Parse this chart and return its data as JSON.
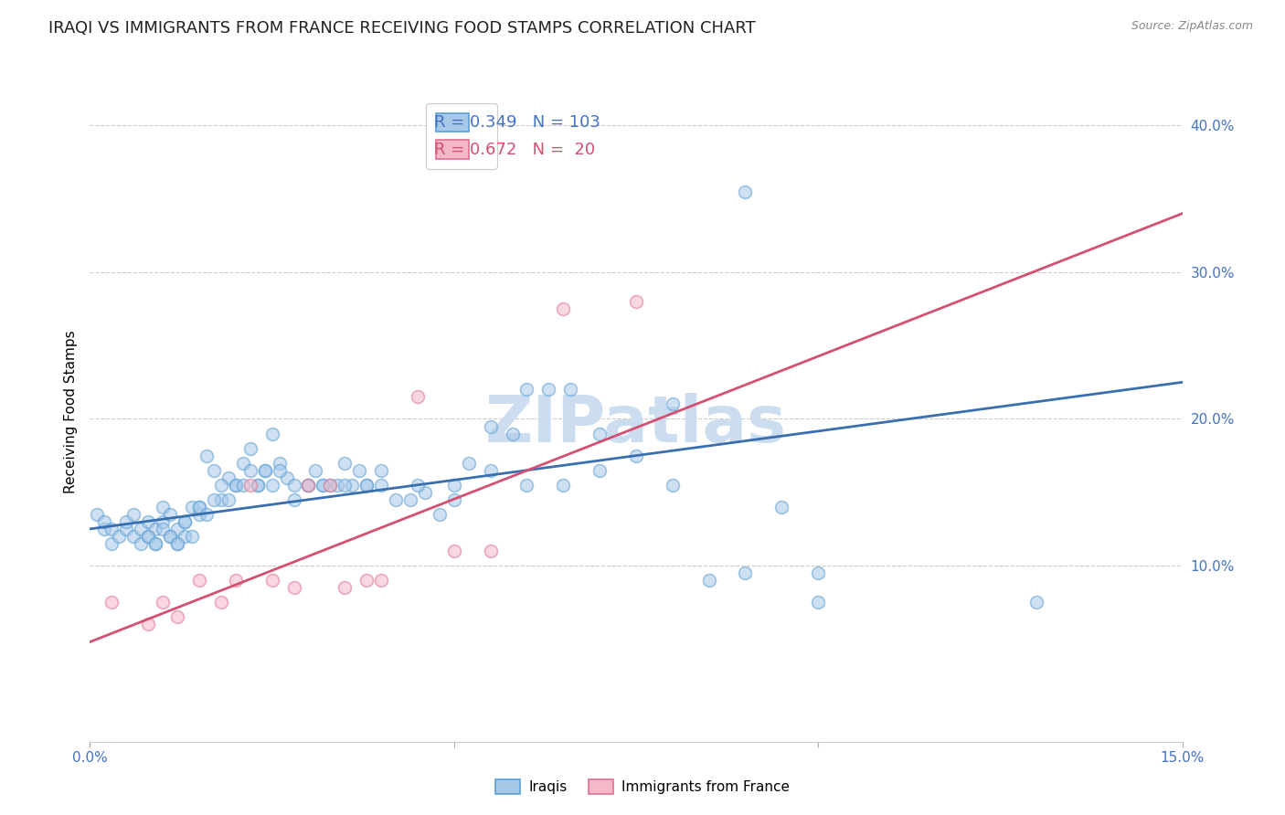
{
  "title": "IRAQI VS IMMIGRANTS FROM FRANCE RECEIVING FOOD STAMPS CORRELATION CHART",
  "source": "Source: ZipAtlas.com",
  "ylabel": "Receiving Food Stamps",
  "xlim": [
    0.0,
    0.15
  ],
  "ylim": [
    -0.02,
    0.43
  ],
  "x_ticks": [
    0.0,
    0.05,
    0.1,
    0.15
  ],
  "x_tick_labels": [
    "0.0%",
    "",
    "",
    "15.0%"
  ],
  "y_ticks": [
    0.1,
    0.2,
    0.3,
    0.4
  ],
  "y_tick_labels": [
    "10.0%",
    "20.0%",
    "30.0%",
    "40.0%"
  ],
  "blue_color": "#a8c8e8",
  "blue_edge_color": "#5a9fd4",
  "pink_color": "#f4b8c8",
  "pink_edge_color": "#e07090",
  "line_blue": "#3a6faf",
  "line_pink": "#d45070",
  "legend_R_color": "#4472c4",
  "legend_N_color": "#4472c4",
  "watermark": "ZIPatlas",
  "blue_scatter_x": [
    0.001,
    0.002,
    0.002,
    0.003,
    0.003,
    0.004,
    0.005,
    0.005,
    0.006,
    0.006,
    0.007,
    0.007,
    0.008,
    0.008,
    0.009,
    0.009,
    0.01,
    0.01,
    0.011,
    0.011,
    0.012,
    0.012,
    0.013,
    0.013,
    0.014,
    0.015,
    0.015,
    0.016,
    0.017,
    0.018,
    0.019,
    0.02,
    0.021,
    0.022,
    0.023,
    0.024,
    0.025,
    0.026,
    0.027,
    0.028,
    0.03,
    0.031,
    0.032,
    0.033,
    0.034,
    0.035,
    0.036,
    0.037,
    0.038,
    0.04,
    0.042,
    0.044,
    0.046,
    0.048,
    0.05,
    0.052,
    0.055,
    0.058,
    0.06,
    0.063,
    0.066,
    0.07,
    0.075,
    0.08,
    0.085,
    0.09,
    0.095,
    0.1,
    0.008,
    0.009,
    0.01,
    0.011,
    0.012,
    0.013,
    0.014,
    0.015,
    0.016,
    0.017,
    0.018,
    0.019,
    0.02,
    0.021,
    0.022,
    0.023,
    0.024,
    0.025,
    0.026,
    0.028,
    0.03,
    0.032,
    0.035,
    0.038,
    0.04,
    0.045,
    0.05,
    0.055,
    0.06,
    0.065,
    0.07,
    0.08,
    0.09,
    0.1,
    0.13
  ],
  "blue_scatter_y": [
    0.135,
    0.125,
    0.13,
    0.115,
    0.125,
    0.12,
    0.125,
    0.13,
    0.12,
    0.135,
    0.115,
    0.125,
    0.12,
    0.13,
    0.115,
    0.125,
    0.13,
    0.14,
    0.12,
    0.135,
    0.115,
    0.125,
    0.13,
    0.12,
    0.14,
    0.135,
    0.14,
    0.175,
    0.165,
    0.145,
    0.16,
    0.155,
    0.17,
    0.18,
    0.155,
    0.165,
    0.19,
    0.17,
    0.16,
    0.145,
    0.155,
    0.165,
    0.155,
    0.155,
    0.155,
    0.17,
    0.155,
    0.165,
    0.155,
    0.165,
    0.145,
    0.145,
    0.15,
    0.135,
    0.145,
    0.17,
    0.195,
    0.19,
    0.22,
    0.22,
    0.22,
    0.19,
    0.175,
    0.21,
    0.09,
    0.355,
    0.14,
    0.095,
    0.12,
    0.115,
    0.125,
    0.12,
    0.115,
    0.13,
    0.12,
    0.14,
    0.135,
    0.145,
    0.155,
    0.145,
    0.155,
    0.155,
    0.165,
    0.155,
    0.165,
    0.155,
    0.165,
    0.155,
    0.155,
    0.155,
    0.155,
    0.155,
    0.155,
    0.155,
    0.155,
    0.165,
    0.155,
    0.155,
    0.165,
    0.155,
    0.095,
    0.075,
    0.075
  ],
  "pink_scatter_x": [
    0.003,
    0.008,
    0.01,
    0.012,
    0.015,
    0.018,
    0.02,
    0.022,
    0.025,
    0.028,
    0.03,
    0.033,
    0.035,
    0.038,
    0.04,
    0.045,
    0.05,
    0.055,
    0.065,
    0.075
  ],
  "pink_scatter_y": [
    0.075,
    0.06,
    0.075,
    0.065,
    0.09,
    0.075,
    0.09,
    0.155,
    0.09,
    0.085,
    0.155,
    0.155,
    0.085,
    0.09,
    0.09,
    0.215,
    0.11,
    0.11,
    0.275,
    0.28
  ],
  "blue_line_x0": 0.0,
  "blue_line_x1": 0.15,
  "blue_line_y0": 0.125,
  "blue_line_y1": 0.225,
  "pink_line_x0": 0.0,
  "pink_line_x1": 0.15,
  "pink_line_y0": 0.048,
  "pink_line_y1": 0.34,
  "tick_color": "#4472c4",
  "grid_color": "#cccccc",
  "background_color": "#ffffff",
  "title_fontsize": 13,
  "axis_label_fontsize": 11,
  "tick_label_fontsize": 11,
  "legend_fontsize": 13,
  "watermark_fontsize": 52,
  "watermark_color": "#ccddf0",
  "scatter_size": 100,
  "scatter_alpha": 0.55,
  "bottom_legend_items": [
    "Iraqis",
    "Immigrants from France"
  ]
}
